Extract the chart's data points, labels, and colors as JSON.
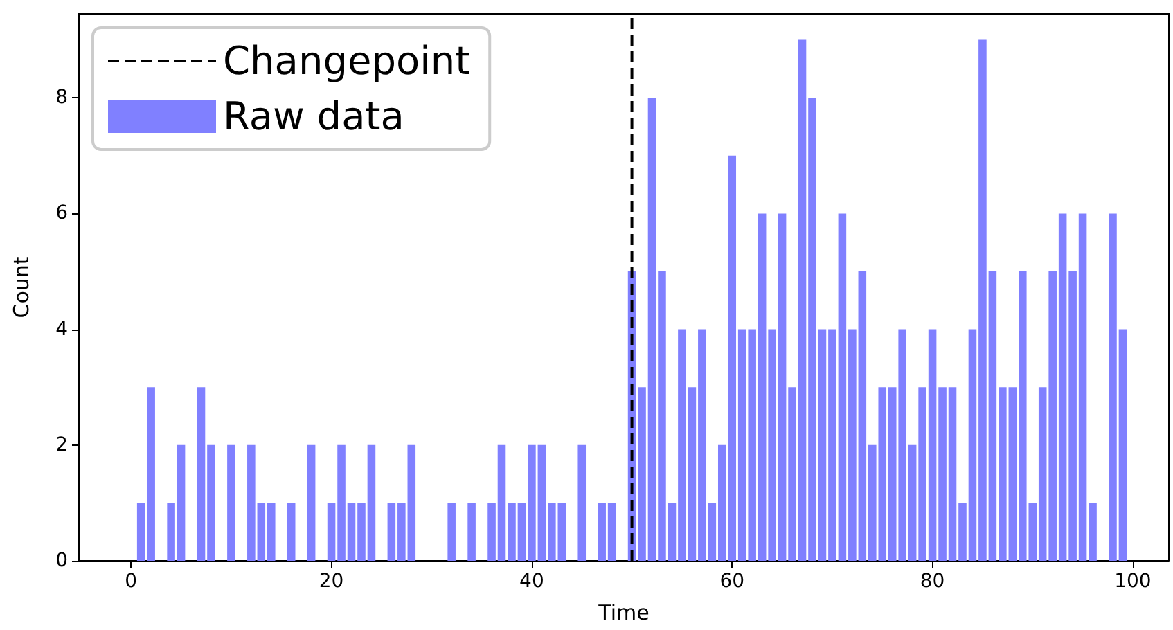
{
  "chart_data": {
    "type": "bar",
    "xlabel": "Time",
    "ylabel": "Count",
    "x": [
      0,
      1,
      2,
      3,
      4,
      5,
      6,
      7,
      8,
      9,
      10,
      11,
      12,
      13,
      14,
      15,
      16,
      17,
      18,
      19,
      20,
      21,
      22,
      23,
      24,
      25,
      26,
      27,
      28,
      29,
      30,
      31,
      32,
      33,
      34,
      35,
      36,
      37,
      38,
      39,
      40,
      41,
      42,
      43,
      44,
      45,
      46,
      47,
      48,
      49,
      50,
      51,
      52,
      53,
      54,
      55,
      56,
      57,
      58,
      59,
      60,
      61,
      62,
      63,
      64,
      65,
      66,
      67,
      68,
      69,
      70,
      71,
      72,
      73,
      74,
      75,
      76,
      77,
      78,
      79,
      80,
      81,
      82,
      83,
      84,
      85,
      86,
      87,
      88,
      89,
      90,
      91,
      92,
      93,
      94,
      95,
      96,
      97,
      98,
      99
    ],
    "series": [
      {
        "name": "Raw data",
        "color": "#8080ff",
        "values": [
          0,
          1,
          3,
          0,
          1,
          2,
          0,
          3,
          2,
          0,
          2,
          0,
          2,
          1,
          1,
          0,
          1,
          0,
          2,
          0,
          1,
          2,
          1,
          1,
          2,
          0,
          1,
          1,
          2,
          0,
          0,
          0,
          1,
          0,
          1,
          0,
          1,
          2,
          1,
          1,
          2,
          2,
          1,
          1,
          0,
          2,
          0,
          1,
          1,
          0,
          5,
          3,
          8,
          5,
          1,
          4,
          3,
          4,
          1,
          2,
          7,
          4,
          4,
          6,
          4,
          6,
          3,
          9,
          8,
          4,
          4,
          6,
          4,
          5,
          2,
          3,
          3,
          4,
          2,
          3,
          4,
          3,
          3,
          1,
          4,
          9,
          5,
          3,
          3,
          5,
          1,
          3,
          5,
          6,
          5,
          6,
          1,
          0,
          6,
          4
        ]
      }
    ],
    "ref_lines": [
      {
        "axis": "x",
        "value": 50,
        "label": "Changepoint",
        "color": "#000000",
        "line_style": "dashed"
      }
    ],
    "xlim": [
      -5.2,
      103.6
    ],
    "xticks": [
      0,
      20,
      40,
      60,
      80,
      100
    ],
    "ylim": [
      0,
      9.45
    ],
    "yticks": [
      0,
      2,
      4,
      6,
      8
    ],
    "grid": false,
    "legend": "top left"
  }
}
